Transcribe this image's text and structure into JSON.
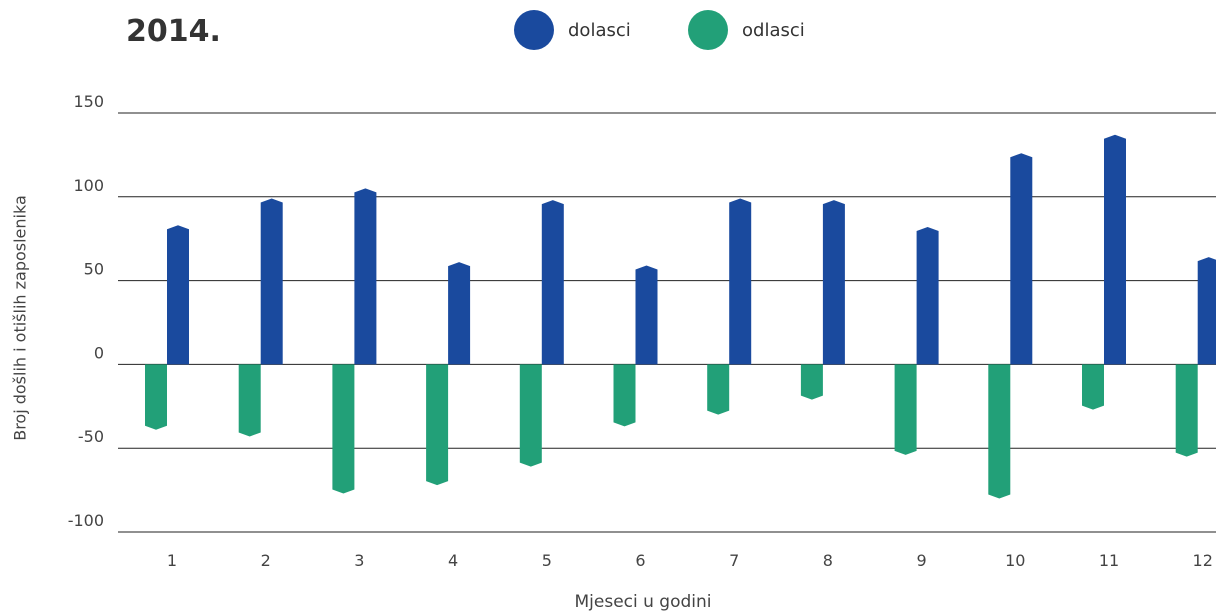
{
  "chart_data": {
    "type": "bar",
    "title": "2014.",
    "xlabel": "Mjeseci u godini",
    "ylabel": "Broj došlih i otišlih zaposlenika",
    "categories": [
      "1",
      "2",
      "3",
      "4",
      "5",
      "6",
      "7",
      "8",
      "9",
      "10",
      "11",
      "12"
    ],
    "series": [
      {
        "name": "dolasci",
        "color": "#1a4a9e",
        "values": [
          83,
          99,
          105,
          61,
          98,
          59,
          99,
          98,
          82,
          126,
          137,
          64
        ]
      },
      {
        "name": "odlasci",
        "color": "#22a078",
        "values": [
          -39,
          -43,
          -77,
          -72,
          -61,
          -37,
          -30,
          -21,
          -54,
          -80,
          -27,
          -55
        ]
      }
    ],
    "ylim": [
      -100,
      150
    ],
    "yticks": [
      "150",
      "100",
      "50",
      "0",
      "-50",
      "-100"
    ],
    "grid": true,
    "legend_position": "top"
  }
}
